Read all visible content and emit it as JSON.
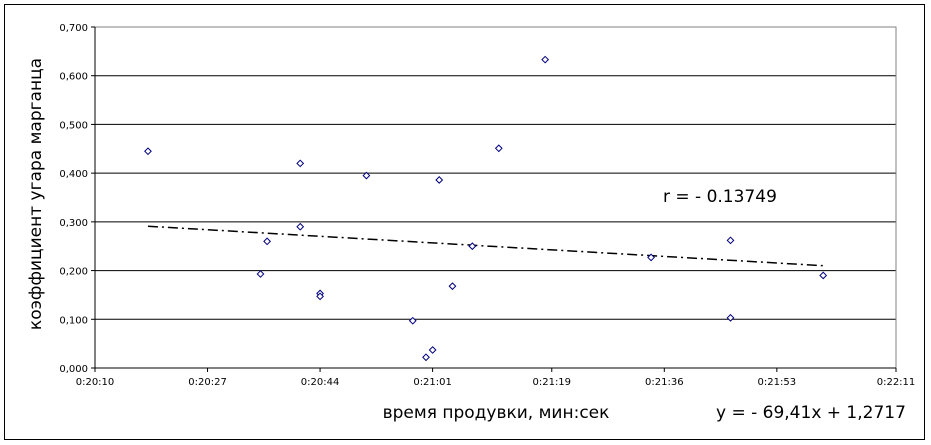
{
  "chart_data": {
    "type": "scatter",
    "title": "",
    "xlabel": "время продувки, мин:сек",
    "ylabel": "коэффициент угара марганца",
    "x_tick_labels": [
      "0:20:10",
      "0:20:27",
      "0:20:44",
      "0:21:01",
      "0:21:19",
      "0:21:36",
      "0:21:53",
      "0:22:11"
    ],
    "x_ticks_seconds": [
      1210,
      1227,
      1244,
      1261,
      1279,
      1296,
      1313,
      1331
    ],
    "xlim_seconds": [
      1210,
      1331
    ],
    "y_tick_labels": [
      "0,000",
      "0,100",
      "0,200",
      "0,300",
      "0,400",
      "0,500",
      "0,600",
      "0,700"
    ],
    "ylim": [
      0,
      0.7
    ],
    "grid": "horizontal",
    "legend": "none",
    "points": [
      {
        "x": "0:20:18",
        "y": 0.445
      },
      {
        "x": "0:20:35",
        "y": 0.193
      },
      {
        "x": "0:20:36",
        "y": 0.26
      },
      {
        "x": "0:20:41",
        "y": 0.42
      },
      {
        "x": "0:20:41",
        "y": 0.29
      },
      {
        "x": "0:20:44",
        "y": 0.153
      },
      {
        "x": "0:20:44",
        "y": 0.147
      },
      {
        "x": "0:20:51",
        "y": 0.395
      },
      {
        "x": "0:20:58",
        "y": 0.097
      },
      {
        "x": "0:21:00",
        "y": 0.022
      },
      {
        "x": "0:21:01",
        "y": 0.037
      },
      {
        "x": "0:21:02",
        "y": 0.386
      },
      {
        "x": "0:21:04",
        "y": 0.168
      },
      {
        "x": "0:21:07",
        "y": 0.25
      },
      {
        "x": "0:21:11",
        "y": 0.451
      },
      {
        "x": "0:21:18",
        "y": 0.633
      },
      {
        "x": "0:21:34",
        "y": 0.227
      },
      {
        "x": "0:21:46",
        "y": 0.262
      },
      {
        "x": "0:21:46",
        "y": 0.103
      },
      {
        "x": "0:22:00",
        "y": 0.19
      }
    ],
    "trendline": {
      "from": {
        "x": "0:20:18",
        "y": 0.291
      },
      "to": {
        "x": "0:22:00",
        "y": 0.21
      },
      "style": "dash-dot"
    },
    "annotations": {
      "r": "r = - 0.13749",
      "equation": "y = - 69,41x + 1,2717"
    },
    "colors": {
      "marker": "#00007f",
      "grid": "#000000",
      "trendline": "#000000",
      "plot_border": "#808080"
    }
  }
}
